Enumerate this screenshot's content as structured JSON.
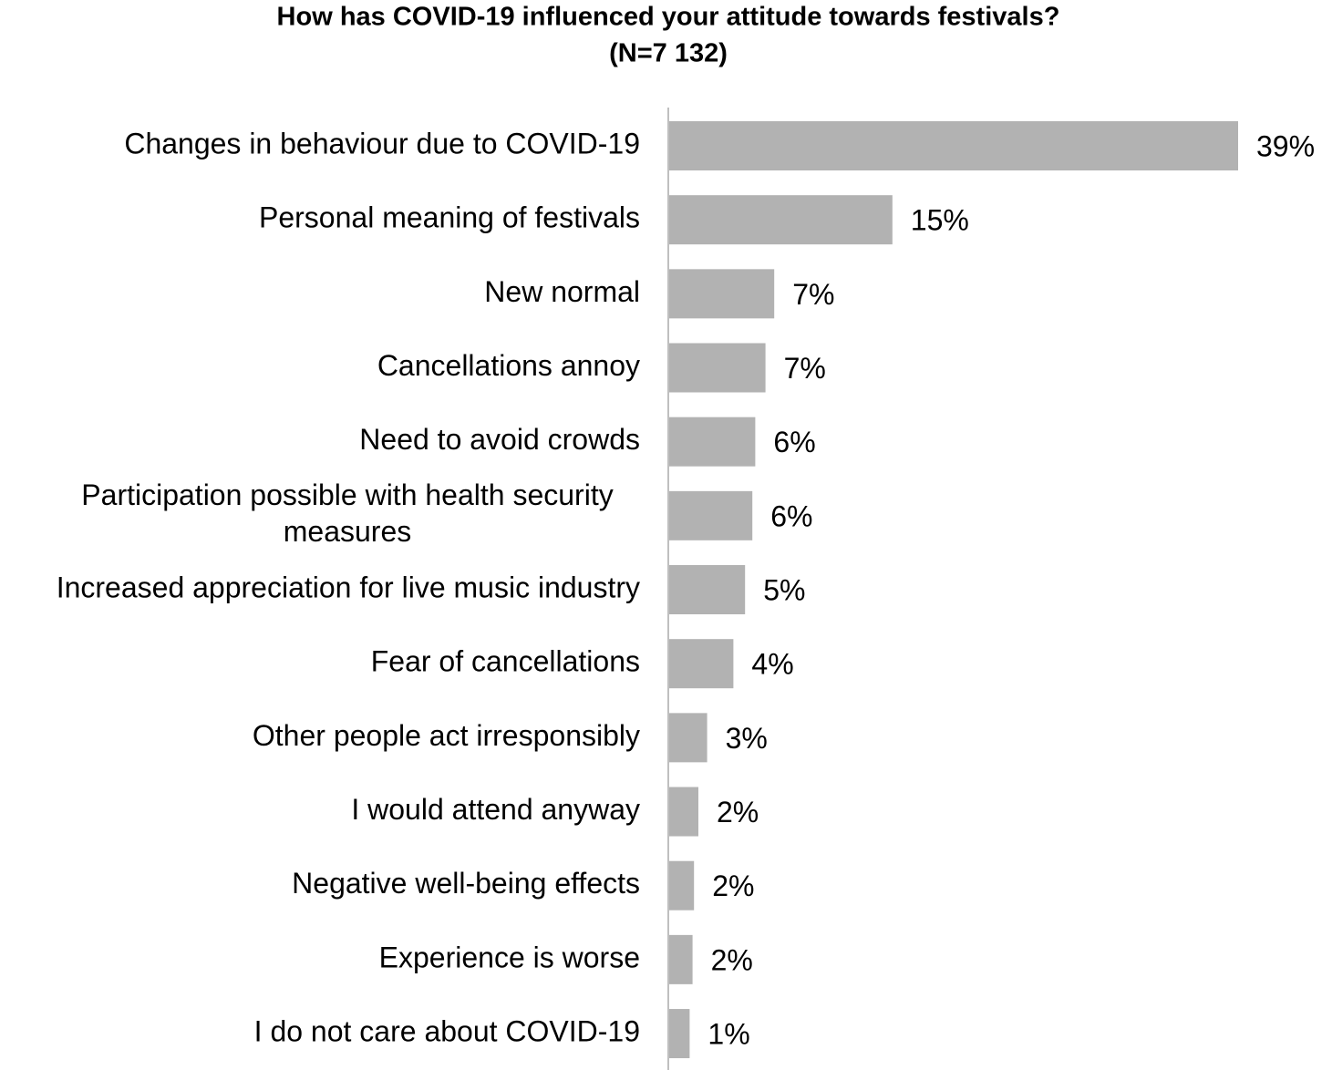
{
  "chart_data": {
    "type": "barh",
    "title": "How has COVID-19 influenced your attitude towards festivals?",
    "subtitle": "(N=7 132)",
    "categories": [
      "Changes in behaviour due to COVID-19",
      "Personal meaning of festivals",
      "New normal",
      "Cancellations annoy",
      "Need to avoid crowds",
      "Participation possible with health security measures",
      "Increased appreciation for live music industry",
      "Fear of cancellations",
      "Other people act irresponsibly",
      "I would attend anyway",
      "Negative well-being effects",
      "Experience is worse",
      "I do not care about COVID-19"
    ],
    "values": [
      39,
      15.3,
      7.2,
      6.6,
      5.9,
      5.7,
      5.2,
      4.4,
      2.6,
      2.0,
      1.7,
      1.6,
      1.4
    ],
    "value_labels": [
      "39%",
      "15%",
      "7%",
      "7%",
      "6%",
      "6%",
      "5%",
      "4%",
      "3%",
      "2%",
      "2%",
      "2%",
      "1%"
    ],
    "color": "#b2b2b2"
  }
}
